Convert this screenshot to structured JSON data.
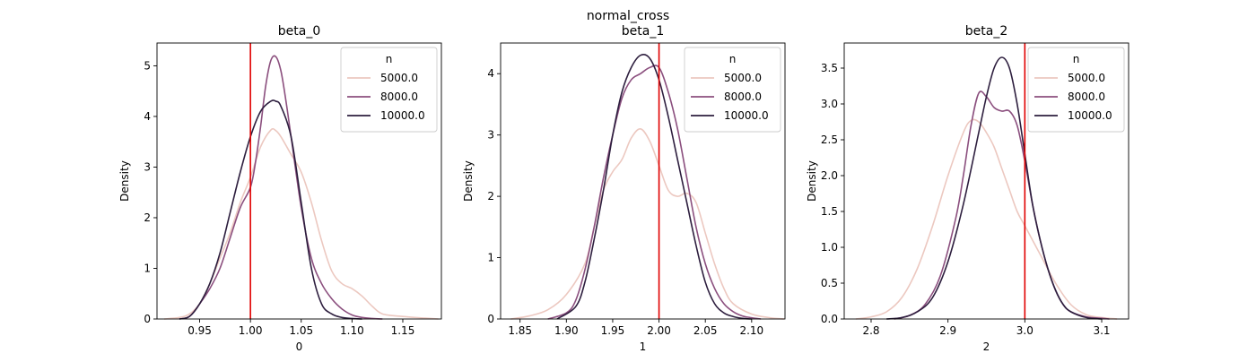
{
  "figure": {
    "suptitle": "normal_cross"
  },
  "legend": {
    "title": "n",
    "entries": [
      {
        "label": "5000.0",
        "color": "#ecc8c0"
      },
      {
        "label": "8000.0",
        "color": "#8b4f7e"
      },
      {
        "label": "10000.0",
        "color": "#2d1e3e"
      }
    ]
  },
  "reference_line_color": "#e00000",
  "chart_data": [
    {
      "type": "line",
      "title": "beta_0",
      "xlabel": "0",
      "ylabel": "Density",
      "xlim": [
        0.908,
        1.188
      ],
      "ylim": [
        0,
        5.45
      ],
      "xticks": [
        0.95,
        1.0,
        1.05,
        1.1,
        1.15
      ],
      "xtick_labels": [
        "0.95",
        "1.00",
        "1.05",
        "1.10",
        "1.15"
      ],
      "yticks": [
        0,
        1,
        2,
        3,
        4,
        5
      ],
      "ytick_labels": [
        "0",
        "1",
        "2",
        "3",
        "4",
        "5"
      ],
      "vline": 1.0,
      "legend_position": "upper right",
      "series": [
        {
          "name": "5000.0",
          "x": [
            0.915,
            0.93,
            0.94,
            0.95,
            0.96,
            0.97,
            0.98,
            0.99,
            1.0,
            1.01,
            1.02,
            1.025,
            1.03,
            1.04,
            1.05,
            1.06,
            1.07,
            1.08,
            1.09,
            1.1,
            1.11,
            1.12,
            1.13,
            1.15,
            1.17,
            1.185
          ],
          "y": [
            0.0,
            0.03,
            0.1,
            0.3,
            0.7,
            1.2,
            1.7,
            2.3,
            2.8,
            3.4,
            3.73,
            3.72,
            3.6,
            3.25,
            2.9,
            2.3,
            1.55,
            0.95,
            0.7,
            0.6,
            0.45,
            0.25,
            0.1,
            0.05,
            0.02,
            0.0
          ]
        },
        {
          "name": "8000.0",
          "x": [
            0.93,
            0.94,
            0.95,
            0.96,
            0.97,
            0.98,
            0.99,
            1.0,
            1.005,
            1.01,
            1.015,
            1.02,
            1.025,
            1.03,
            1.035,
            1.04,
            1.05,
            1.06,
            1.07,
            1.08,
            1.09,
            1.1,
            1.11,
            1.12,
            1.13
          ],
          "y": [
            0.0,
            0.05,
            0.3,
            0.6,
            1.0,
            1.6,
            2.2,
            2.6,
            3.1,
            3.8,
            4.6,
            5.1,
            5.18,
            4.9,
            4.3,
            3.6,
            2.2,
            1.2,
            0.7,
            0.4,
            0.2,
            0.08,
            0.03,
            0.01,
            0.0
          ]
        },
        {
          "name": "10000.0",
          "x": [
            0.93,
            0.94,
            0.95,
            0.96,
            0.97,
            0.98,
            0.99,
            1.0,
            1.01,
            1.02,
            1.025,
            1.03,
            1.04,
            1.05,
            1.06,
            1.07,
            1.08,
            1.09,
            1.1,
            1.11
          ],
          "y": [
            0.0,
            0.05,
            0.3,
            0.7,
            1.3,
            2.1,
            2.9,
            3.6,
            4.1,
            4.3,
            4.3,
            4.2,
            3.6,
            2.3,
            1.0,
            0.3,
            0.1,
            0.03,
            0.01,
            0.0
          ]
        }
      ]
    },
    {
      "type": "line",
      "title": "beta_1",
      "xlabel": "1",
      "ylabel": "Density",
      "xlim": [
        1.829,
        2.136
      ],
      "ylim": [
        0,
        4.5
      ],
      "xticks": [
        1.85,
        1.9,
        1.95,
        2.0,
        2.05,
        2.1
      ],
      "xtick_labels": [
        "1.85",
        "1.90",
        "1.95",
        "2.00",
        "2.05",
        "2.10"
      ],
      "yticks": [
        0,
        1,
        2,
        3,
        4
      ],
      "ytick_labels": [
        "0",
        "1",
        "2",
        "3",
        "4"
      ],
      "vline": 2.0,
      "legend_position": "upper right",
      "series": [
        {
          "name": "5000.0",
          "x": [
            1.84,
            1.86,
            1.88,
            1.9,
            1.92,
            1.93,
            1.94,
            1.95,
            1.96,
            1.97,
            1.98,
            1.99,
            2.0,
            2.01,
            2.02,
            2.03,
            2.04,
            2.05,
            2.06,
            2.07,
            2.08,
            2.1,
            2.12,
            2.135
          ],
          "y": [
            0.0,
            0.05,
            0.15,
            0.4,
            0.9,
            1.5,
            2.1,
            2.4,
            2.6,
            2.95,
            3.1,
            2.9,
            2.5,
            2.1,
            2.0,
            2.05,
            1.9,
            1.4,
            0.9,
            0.5,
            0.25,
            0.08,
            0.02,
            0.0
          ]
        },
        {
          "name": "8000.0",
          "x": [
            1.88,
            1.9,
            1.91,
            1.92,
            1.93,
            1.94,
            1.95,
            1.96,
            1.97,
            1.98,
            1.99,
            2.0,
            2.01,
            2.02,
            2.03,
            2.04,
            2.05,
            2.06,
            2.07,
            2.08,
            2.09,
            2.1,
            2.11
          ],
          "y": [
            0.0,
            0.1,
            0.3,
            0.8,
            1.5,
            2.3,
            3.0,
            3.6,
            3.9,
            4.0,
            4.1,
            4.1,
            3.7,
            3.1,
            2.3,
            1.5,
            0.9,
            0.5,
            0.25,
            0.12,
            0.05,
            0.02,
            0.0
          ]
        },
        {
          "name": "10000.0",
          "x": [
            1.89,
            1.91,
            1.92,
            1.93,
            1.94,
            1.95,
            1.96,
            1.97,
            1.98,
            1.99,
            2.0,
            2.01,
            2.02,
            2.03,
            2.04,
            2.05,
            2.06,
            2.07,
            2.08,
            2.09,
            2.1
          ],
          "y": [
            0.0,
            0.2,
            0.6,
            1.3,
            2.1,
            3.0,
            3.7,
            4.1,
            4.3,
            4.25,
            3.9,
            3.3,
            2.6,
            1.9,
            1.2,
            0.6,
            0.25,
            0.1,
            0.04,
            0.01,
            0.0
          ]
        }
      ]
    },
    {
      "type": "line",
      "title": "beta_2",
      "xlabel": "2",
      "ylabel": "Density",
      "xlim": [
        2.765,
        3.135
      ],
      "ylim": [
        0,
        3.85
      ],
      "xticks": [
        2.8,
        2.9,
        3.0,
        3.1
      ],
      "xtick_labels": [
        "2.8",
        "2.9",
        "3.0",
        "3.1"
      ],
      "yticks": [
        0.0,
        0.5,
        1.0,
        1.5,
        2.0,
        2.5,
        3.0,
        3.5
      ],
      "ytick_labels": [
        "0.0",
        "0.5",
        "1.0",
        "1.5",
        "2.0",
        "2.5",
        "3.0",
        "3.5"
      ],
      "vline": 3.0,
      "legend_position": "upper right",
      "series": [
        {
          "name": "5000.0",
          "x": [
            2.78,
            2.8,
            2.82,
            2.84,
            2.86,
            2.88,
            2.9,
            2.92,
            2.93,
            2.94,
            2.95,
            2.96,
            2.97,
            2.98,
            2.99,
            3.0,
            3.02,
            3.04,
            3.06,
            3.08,
            3.1,
            3.12
          ],
          "y": [
            0.0,
            0.03,
            0.1,
            0.3,
            0.7,
            1.3,
            2.0,
            2.6,
            2.77,
            2.75,
            2.6,
            2.4,
            2.1,
            1.8,
            1.5,
            1.3,
            0.9,
            0.5,
            0.2,
            0.06,
            0.02,
            0.0
          ]
        },
        {
          "name": "8000.0",
          "x": [
            2.83,
            2.85,
            2.87,
            2.89,
            2.91,
            2.92,
            2.93,
            2.94,
            2.95,
            2.96,
            2.97,
            2.98,
            2.99,
            3.0,
            3.01,
            3.02,
            3.03,
            3.04,
            3.05,
            3.06,
            3.08,
            3.1,
            3.11
          ],
          "y": [
            0.0,
            0.05,
            0.2,
            0.6,
            1.4,
            2.0,
            2.7,
            3.15,
            3.1,
            2.95,
            2.9,
            2.9,
            2.7,
            2.2,
            1.6,
            1.1,
            0.7,
            0.4,
            0.2,
            0.1,
            0.03,
            0.01,
            0.0
          ]
        },
        {
          "name": "10000.0",
          "x": [
            2.82,
            2.84,
            2.86,
            2.88,
            2.9,
            2.92,
            2.94,
            2.95,
            2.96,
            2.97,
            2.98,
            2.99,
            3.0,
            3.01,
            3.02,
            3.03,
            3.04,
            3.05,
            3.06,
            3.08,
            3.1
          ],
          "y": [
            0.0,
            0.02,
            0.1,
            0.3,
            0.8,
            1.6,
            2.6,
            3.1,
            3.5,
            3.65,
            3.5,
            3.0,
            2.3,
            1.6,
            1.1,
            0.7,
            0.4,
            0.2,
            0.1,
            0.02,
            0.0
          ]
        }
      ]
    }
  ]
}
